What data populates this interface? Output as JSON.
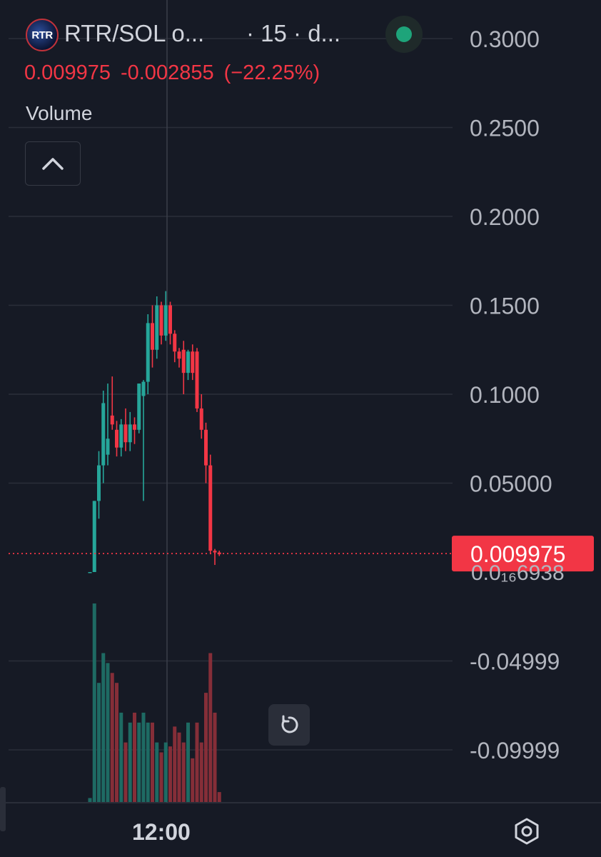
{
  "header": {
    "logo_text": "RTR",
    "symbol": "RTR/SOL o...",
    "interval_text": "· 15 · d...",
    "last_price": "0.009975",
    "change": "-0.002855",
    "change_pct": "(−22.25%)",
    "volume_label": "Volume"
  },
  "colors": {
    "background": "#161a25",
    "up": "#26a69a",
    "down": "#f23645",
    "grid": "#2a2e39",
    "text": "#b2b5be",
    "status": "#1ea47a"
  },
  "icons": {
    "collapse": "chevron-up-icon",
    "reset": "reset-icon",
    "settings": "settings-icon",
    "status": "status-dot-icon"
  },
  "chart_data": {
    "type": "candlestick",
    "title": "RTR/SOL o...",
    "interval": "15",
    "grid": true,
    "y_axis": {
      "position": "right",
      "ticks": [
        {
          "value": 0.3,
          "label": "0.3000"
        },
        {
          "value": 0.25,
          "label": "0.2500"
        },
        {
          "value": 0.2,
          "label": "0.2000"
        },
        {
          "value": 0.15,
          "label": "0.1500"
        },
        {
          "value": 0.1,
          "label": "0.1000"
        },
        {
          "value": 0.05,
          "label": "0.05000"
        },
        {
          "value": -0.05,
          "label": "-0.04999"
        },
        {
          "value": -0.1,
          "label": "-0.09999"
        }
      ],
      "ylim": [
        -0.1,
        0.3
      ],
      "partial_tick_label": "0.0₁₆6938"
    },
    "x_axis": {
      "ticks": [
        "12:00"
      ]
    },
    "last_price": {
      "value": 0.009975,
      "label": "0.009975"
    },
    "candles": [
      {
        "o": 0.0,
        "h": 0.0,
        "l": 0.0,
        "c": 0.0
      },
      {
        "o": 0.0,
        "h": 0.04,
        "l": 0.0,
        "c": 0.04
      },
      {
        "o": 0.04,
        "h": 0.068,
        "l": 0.03,
        "c": 0.06
      },
      {
        "o": 0.06,
        "h": 0.102,
        "l": 0.05,
        "c": 0.095
      },
      {
        "o": 0.066,
        "h": 0.106,
        "l": 0.06,
        "c": 0.075
      },
      {
        "o": 0.088,
        "h": 0.11,
        "l": 0.08,
        "c": 0.083
      },
      {
        "o": 0.08,
        "h": 0.085,
        "l": 0.065,
        "c": 0.07
      },
      {
        "o": 0.07,
        "h": 0.086,
        "l": 0.065,
        "c": 0.083
      },
      {
        "o": 0.083,
        "h": 0.092,
        "l": 0.068,
        "c": 0.073
      },
      {
        "o": 0.073,
        "h": 0.09,
        "l": 0.068,
        "c": 0.083
      },
      {
        "o": 0.083,
        "h": 0.087,
        "l": 0.072,
        "c": 0.08
      },
      {
        "o": 0.08,
        "h": 0.106,
        "l": 0.078,
        "c": 0.106
      },
      {
        "o": 0.099,
        "h": 0.108,
        "l": 0.04,
        "c": 0.107
      },
      {
        "o": 0.107,
        "h": 0.145,
        "l": 0.1,
        "c": 0.14
      },
      {
        "o": 0.14,
        "h": 0.15,
        "l": 0.115,
        "c": 0.125
      },
      {
        "o": 0.125,
        "h": 0.155,
        "l": 0.12,
        "c": 0.15
      },
      {
        "o": 0.15,
        "h": 0.152,
        "l": 0.128,
        "c": 0.133
      },
      {
        "o": 0.133,
        "h": 0.158,
        "l": 0.13,
        "c": 0.15
      },
      {
        "o": 0.15,
        "h": 0.152,
        "l": 0.128,
        "c": 0.134
      },
      {
        "o": 0.134,
        "h": 0.136,
        "l": 0.118,
        "c": 0.124
      },
      {
        "o": 0.124,
        "h": 0.126,
        "l": 0.115,
        "c": 0.12
      },
      {
        "o": 0.125,
        "h": 0.13,
        "l": 0.1,
        "c": 0.112
      },
      {
        "o": 0.112,
        "h": 0.125,
        "l": 0.108,
        "c": 0.124
      },
      {
        "o": 0.124,
        "h": 0.128,
        "l": 0.108,
        "c": 0.112
      },
      {
        "o": 0.124,
        "h": 0.126,
        "l": 0.09,
        "c": 0.092
      },
      {
        "o": 0.092,
        "h": 0.1,
        "l": 0.075,
        "c": 0.08
      },
      {
        "o": 0.08,
        "h": 0.084,
        "l": 0.05,
        "c": 0.06
      },
      {
        "o": 0.06,
        "h": 0.066,
        "l": 0.01,
        "c": 0.012
      },
      {
        "o": 0.012,
        "h": 0.013,
        "l": 0.004,
        "c": 0.011
      },
      {
        "o": 0.011,
        "h": 0.012,
        "l": 0.009,
        "c": 0.01
      }
    ],
    "volume": [
      0.02,
      1.0,
      0.6,
      0.75,
      0.7,
      0.65,
      0.6,
      0.45,
      0.3,
      0.4,
      0.45,
      0.4,
      0.45,
      0.4,
      0.4,
      0.3,
      0.25,
      0.3,
      0.28,
      0.38,
      0.35,
      0.3,
      0.4,
      0.22,
      0.4,
      0.3,
      0.55,
      0.75,
      0.45,
      0.05
    ]
  }
}
